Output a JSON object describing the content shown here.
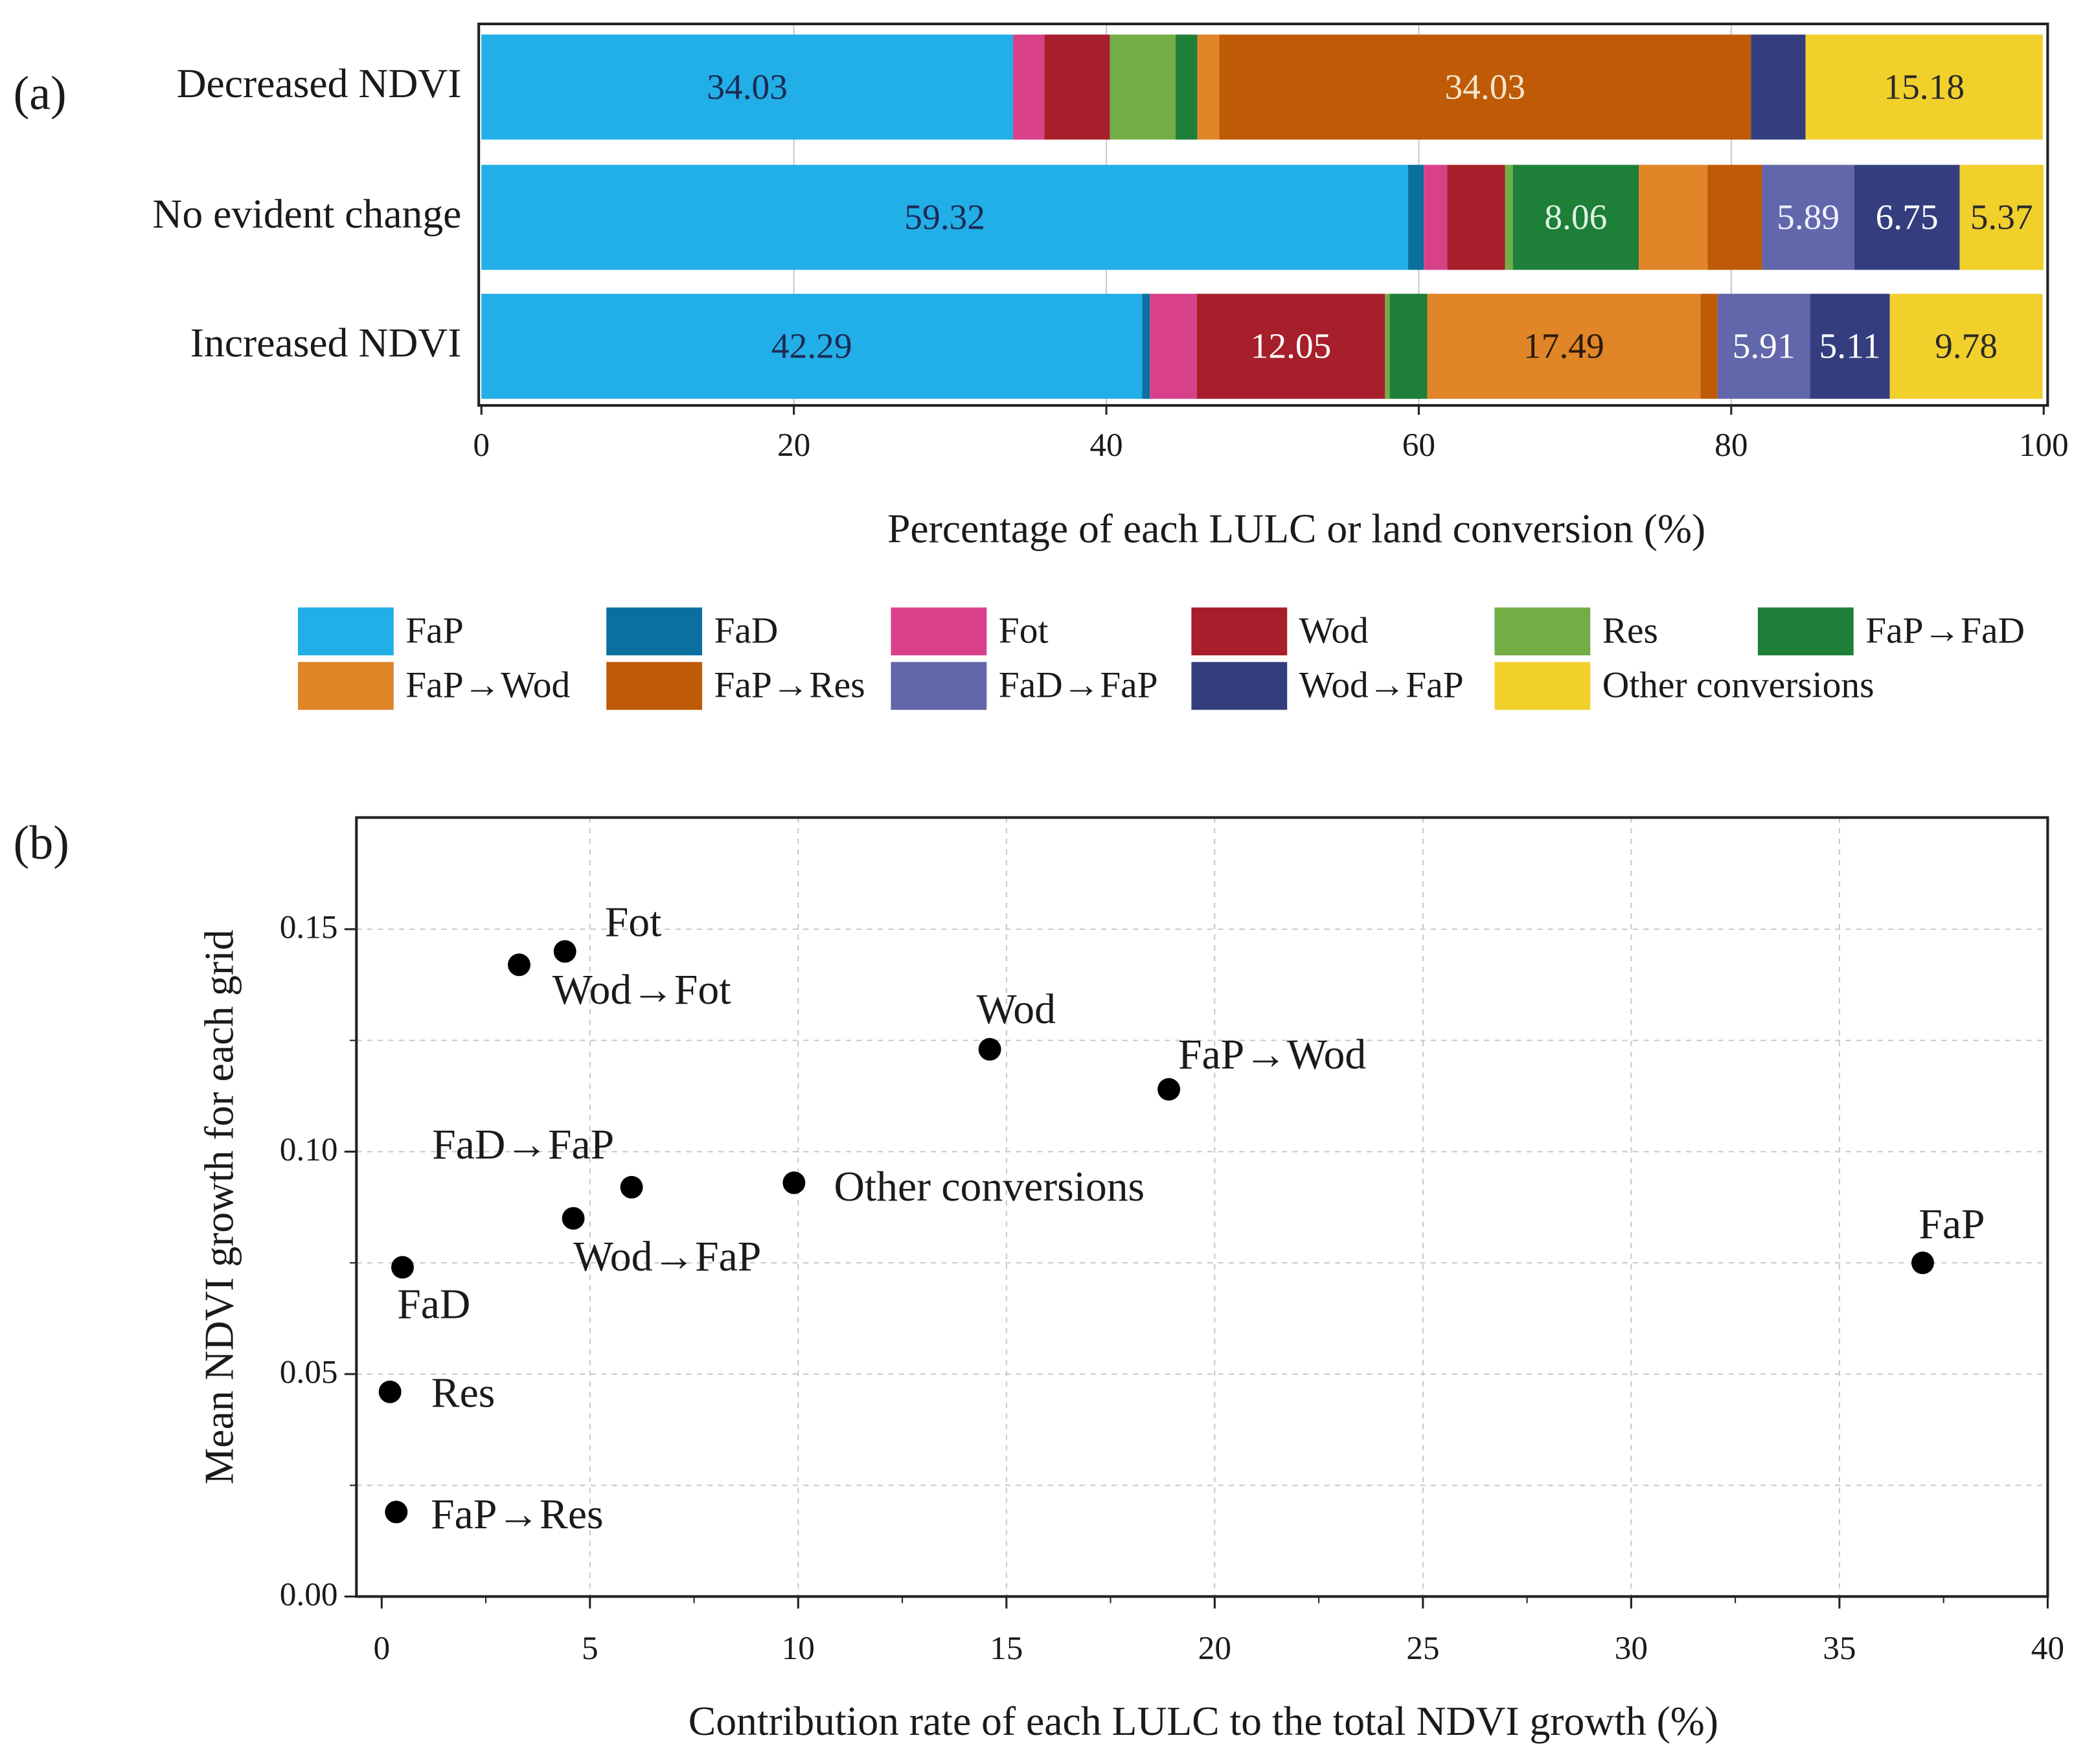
{
  "chart_data": [
    {
      "panel_label": "(a)",
      "type": "bar",
      "orientation": "horizontal-stacked",
      "xlabel": "Percentage of each LULC or land conversion (%)",
      "xlim": [
        0,
        100
      ],
      "xticks": [
        "0",
        "20",
        "40",
        "60",
        "80",
        "100"
      ],
      "categories": [
        "Decreased NDVI",
        "No evident change",
        "Increased NDVI"
      ],
      "legend_position": "bottom",
      "series": [
        {
          "name": "FaP",
          "color": "#22aee6",
          "values": [
            34.03,
            59.32,
            42.29
          ]
        },
        {
          "name": "FaD",
          "color": "#0b6fa0",
          "values": [
            0,
            1.0,
            0.5
          ]
        },
        {
          "name": "Fot",
          "color": "#d8418a",
          "values": [
            2.0,
            1.5,
            3.0
          ]
        },
        {
          "name": "Wod",
          "color": "#a61f2b",
          "values": [
            4.2,
            3.7,
            12.05
          ]
        },
        {
          "name": "Res",
          "color": "#73ad46",
          "values": [
            4.2,
            0.5,
            0.3
          ]
        },
        {
          "name": "FaP→FaD",
          "color": "#1e7f38",
          "values": [
            1.4,
            8.06,
            2.4
          ]
        },
        {
          "name": "FaP→Wod",
          "color": "#e08528",
          "values": [
            1.4,
            4.4,
            17.49
          ]
        },
        {
          "name": "FaP→Res",
          "color": "#bf5a06",
          "values": [
            34.03,
            3.5,
            1.1
          ]
        },
        {
          "name": "FaD→FaP",
          "color": "#6266ab",
          "values": [
            0,
            5.89,
            5.91
          ]
        },
        {
          "name": "Wod→FaP",
          "color": "#343e7f",
          "values": [
            3.5,
            6.75,
            5.11
          ]
        },
        {
          "name": "Other conversions",
          "color": "#f2d02c",
          "values": [
            15.18,
            5.37,
            9.78
          ]
        }
      ],
      "data_labels": [
        {
          "category": "Decreased NDVI",
          "series": "FaP",
          "text": "34.03",
          "color": "#1b2a55"
        },
        {
          "category": "Decreased NDVI",
          "series": "FaP→Res",
          "text": "34.03",
          "color": "#f4e6cc"
        },
        {
          "category": "Decreased NDVI",
          "series": "Other conversions",
          "text": "15.18",
          "color": "#2a2a2a"
        },
        {
          "category": "No evident change",
          "series": "FaP",
          "text": "59.32",
          "color": "#1b2a55"
        },
        {
          "category": "No evident change",
          "series": "FaP→FaD",
          "text": "8.06",
          "color": "#dff3e3"
        },
        {
          "category": "No evident change",
          "series": "FaD→FaP",
          "text": "5.89",
          "color": "#eef0ff"
        },
        {
          "category": "No evident change",
          "series": "Wod→FaP",
          "text": "6.75",
          "color": "#ffffff"
        },
        {
          "category": "No evident change",
          "series": "Other conversions",
          "text": "5.37",
          "color": "#2a2a2a"
        },
        {
          "category": "Increased NDVI",
          "series": "FaP",
          "text": "42.29",
          "color": "#1b2a55"
        },
        {
          "category": "Increased NDVI",
          "series": "Wod",
          "text": "12.05",
          "color": "#ffffff"
        },
        {
          "category": "Increased NDVI",
          "series": "FaP→Wod",
          "text": "17.49",
          "color": "#2a1a0a"
        },
        {
          "category": "Increased NDVI",
          "series": "FaD→FaP",
          "text": "5.91",
          "color": "#ffffff"
        },
        {
          "category": "Increased NDVI",
          "series": "Wod→FaP",
          "text": "5.11",
          "color": "#ffffff"
        },
        {
          "category": "Increased NDVI",
          "series": "Other conversions",
          "text": "9.78",
          "color": "#2a2a2a"
        }
      ]
    },
    {
      "panel_label": "(b)",
      "type": "scatter",
      "xlabel": "Contribution rate of each LULC to the total NDVI growth (%)",
      "ylabel": "Mean NDVI growth for each grid",
      "xlim": [
        -0.6,
        40
      ],
      "ylim": [
        0,
        0.175
      ],
      "xticks": [
        "0",
        "5",
        "10",
        "15",
        "20",
        "25",
        "30",
        "35",
        "40"
      ],
      "yticks": [
        "0.00",
        "0.05",
        "0.10",
        "0.15"
      ],
      "grid": true,
      "points": [
        {
          "label": "Fot",
          "x": 4.4,
          "y": 0.145
        },
        {
          "label": "Wod→Fot",
          "x": 3.3,
          "y": 0.142
        },
        {
          "label": "Wod",
          "x": 14.6,
          "y": 0.123
        },
        {
          "label": "FaP→Wod",
          "x": 18.9,
          "y": 0.114
        },
        {
          "label": "FaD→FaP",
          "x": 6.0,
          "y": 0.092
        },
        {
          "label": "Other conversions",
          "x": 9.9,
          "y": 0.093
        },
        {
          "label": "Wod→FaP",
          "x": 4.6,
          "y": 0.085
        },
        {
          "label": "FaD",
          "x": 0.5,
          "y": 0.074
        },
        {
          "label": "FaP",
          "x": 37.0,
          "y": 0.075
        },
        {
          "label": "Res",
          "x": 0.2,
          "y": 0.046
        },
        {
          "label": "FaP→Res",
          "x": 0.35,
          "y": 0.019
        }
      ]
    }
  ]
}
